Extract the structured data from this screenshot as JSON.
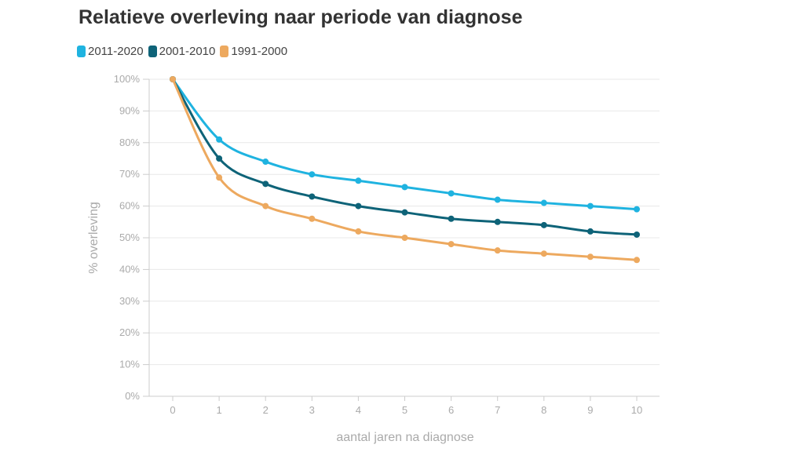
{
  "chart_data": {
    "type": "line",
    "title": "Relatieve overleving naar periode van diagnose",
    "xlabel": "aantal jaren na diagnose",
    "ylabel": "% overleving",
    "x": [
      0,
      1,
      2,
      3,
      4,
      5,
      6,
      7,
      8,
      9,
      10
    ],
    "xlim": [
      0,
      10
    ],
    "ylim": [
      0,
      100
    ],
    "yticks": [
      "0%",
      "10%",
      "20%",
      "30%",
      "40%",
      "50%",
      "60%",
      "70%",
      "80%",
      "90%",
      "100%"
    ],
    "xticks": [
      "0",
      "1",
      "2",
      "3",
      "4",
      "5",
      "6",
      "7",
      "8",
      "9",
      "10"
    ],
    "grid": true,
    "legend_position": "top-left",
    "series": [
      {
        "name": "2011-2020",
        "color": "#1fb3e0",
        "values": [
          100,
          81,
          74,
          70,
          68,
          66,
          64,
          62,
          61,
          60,
          59
        ]
      },
      {
        "name": "2001-2010",
        "color": "#0e6378",
        "values": [
          100,
          75,
          67,
          63,
          60,
          58,
          56,
          55,
          54,
          52,
          51
        ]
      },
      {
        "name": "1991-2000",
        "color": "#eda95f",
        "values": [
          100,
          69,
          60,
          56,
          52,
          50,
          48,
          46,
          45,
          44,
          43
        ]
      }
    ]
  }
}
